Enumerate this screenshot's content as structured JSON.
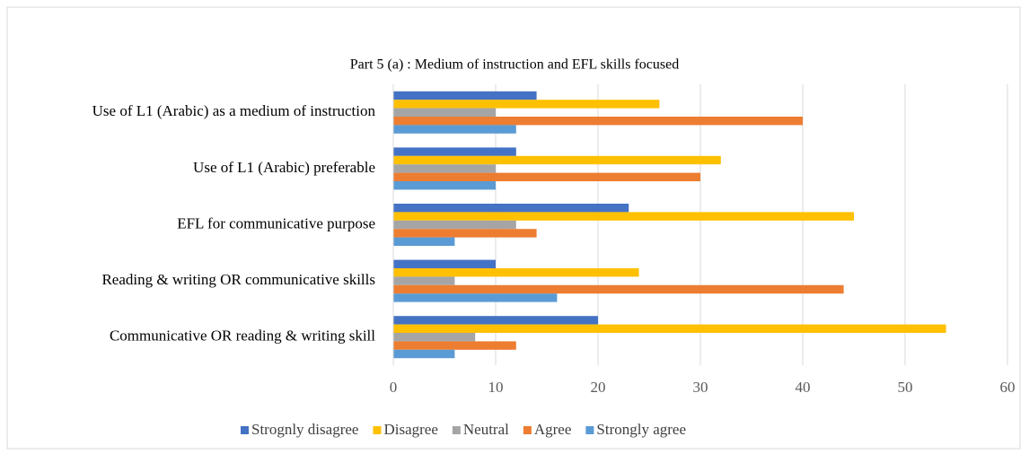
{
  "chart_data": {
    "type": "hbar",
    "title": "Part 5 (a) : Medium of instruction and EFL skills focused",
    "categories": [
      "Use of L1 (Arabic) as a medium of instruction",
      "Use of L1 (Arabic) preferable",
      "EFL for communicative purpose",
      "Reading & writing OR communicative skills",
      "Communicative OR reading & writing skill"
    ],
    "series": [
      {
        "name": "Strognly disagree",
        "color": "#4472c4",
        "values": [
          14,
          12,
          23,
          10,
          20
        ]
      },
      {
        "name": "Disagree",
        "color": "#ffc000",
        "values": [
          26,
          32,
          45,
          24,
          54
        ]
      },
      {
        "name": "Neutral",
        "color": "#a5a5a5",
        "values": [
          10,
          10,
          12,
          6,
          8
        ]
      },
      {
        "name": "Agree",
        "color": "#ed7d31",
        "values": [
          40,
          30,
          14,
          44,
          12
        ]
      },
      {
        "name": "Strongly agree",
        "color": "#5b9bd5",
        "values": [
          12,
          10,
          6,
          16,
          6
        ]
      }
    ],
    "xlim": [
      0,
      60
    ],
    "xticks": [
      0,
      10,
      20,
      30,
      40,
      50,
      60
    ],
    "grid": true,
    "legend": "bottom"
  }
}
